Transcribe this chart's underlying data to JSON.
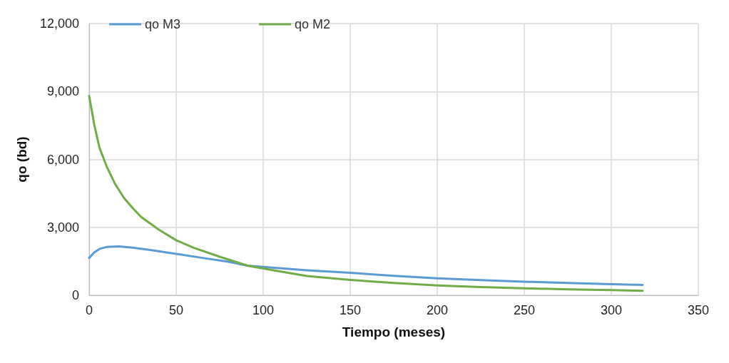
{
  "chart_data": {
    "type": "line",
    "xlabel": "Tiempo (meses)",
    "ylabel": "qo (bd)",
    "xlim": [
      0,
      350
    ],
    "xticks": [
      0,
      50,
      100,
      150,
      200,
      250,
      300,
      350
    ],
    "ylim": [
      0,
      12000
    ],
    "yticks": [
      {
        "value": 0,
        "label": "0"
      },
      {
        "value": 3000,
        "label": "3,000"
      },
      {
        "value": 6000,
        "label": "6,000"
      },
      {
        "value": 9000,
        "label": "9,000"
      },
      {
        "value": 12000,
        "label": "12,000"
      }
    ],
    "grid": true,
    "legend": "top left",
    "marker": "none",
    "line_style": "solid",
    "series": [
      {
        "name": "qo M3",
        "color": "#5b9bd5",
        "x": [
          0,
          3,
          6,
          10,
          17,
          25,
          35,
          50,
          65,
          80,
          91,
          100,
          125,
          150,
          175,
          200,
          225,
          250,
          275,
          300,
          318
        ],
        "values": [
          1650,
          1900,
          2050,
          2130,
          2160,
          2100,
          2000,
          1830,
          1650,
          1480,
          1310,
          1250,
          1100,
          990,
          860,
          745,
          670,
          600,
          540,
          485,
          460
        ]
      },
      {
        "name": "qo M2",
        "color": "#70ad47",
        "x": [
          0,
          3,
          6,
          10,
          15,
          20,
          25,
          30,
          40,
          50,
          60,
          75,
          91,
          100,
          125,
          150,
          175,
          200,
          225,
          250,
          275,
          300,
          318
        ],
        "values": [
          8800,
          7500,
          6500,
          5700,
          4900,
          4300,
          3850,
          3450,
          2900,
          2430,
          2100,
          1700,
          1310,
          1180,
          850,
          680,
          540,
          435,
          360,
          310,
          260,
          225,
          200
        ]
      }
    ]
  }
}
